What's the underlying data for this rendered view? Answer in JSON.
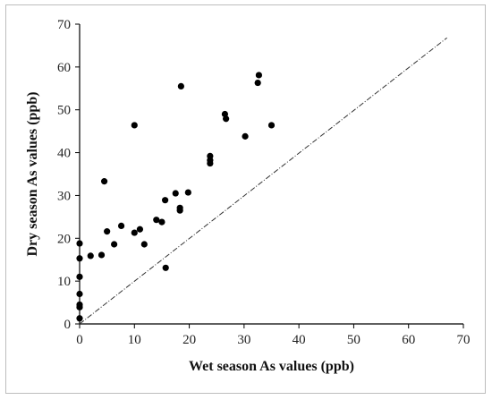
{
  "chart_data": {
    "type": "scatter",
    "title": "",
    "xlabel": "Wet season As values (ppb)",
    "ylabel": "Dry season As values (ppb)",
    "xlim": [
      0,
      70
    ],
    "ylim": [
      0,
      70
    ],
    "xticks": [
      "0",
      "10",
      "20",
      "30",
      "40",
      "50",
      "60",
      "70"
    ],
    "yticks": [
      "0",
      "10",
      "20",
      "30",
      "40",
      "50",
      "60",
      "70"
    ],
    "grid": false,
    "legend": "none",
    "reference_line": {
      "style": "dash-dot",
      "from": [
        0,
        0
      ],
      "to": [
        67,
        66.8
      ]
    },
    "marker_color": "#000000",
    "points": [
      {
        "x": 0,
        "y": 1.3
      },
      {
        "x": 0,
        "y": 3.9
      },
      {
        "x": 0,
        "y": 4.5
      },
      {
        "x": 0,
        "y": 7
      },
      {
        "x": 0,
        "y": 11
      },
      {
        "x": 0,
        "y": 15.3
      },
      {
        "x": 0,
        "y": 18.8
      },
      {
        "x": 2,
        "y": 15.9
      },
      {
        "x": 4,
        "y": 16.1
      },
      {
        "x": 4.5,
        "y": 33.3
      },
      {
        "x": 5,
        "y": 21.6
      },
      {
        "x": 6.3,
        "y": 18.6
      },
      {
        "x": 7.6,
        "y": 22.9
      },
      {
        "x": 10,
        "y": 46.4
      },
      {
        "x": 10,
        "y": 21.3
      },
      {
        "x": 11,
        "y": 22.1
      },
      {
        "x": 11.8,
        "y": 18.6
      },
      {
        "x": 14,
        "y": 24.3
      },
      {
        "x": 15,
        "y": 23.8
      },
      {
        "x": 15.6,
        "y": 28.9
      },
      {
        "x": 15.7,
        "y": 13.1
      },
      {
        "x": 17.5,
        "y": 30.5
      },
      {
        "x": 18.3,
        "y": 26.5
      },
      {
        "x": 18.3,
        "y": 27.1
      },
      {
        "x": 18.5,
        "y": 55.5
      },
      {
        "x": 19.8,
        "y": 30.7
      },
      {
        "x": 23.8,
        "y": 37.5
      },
      {
        "x": 23.8,
        "y": 38.2
      },
      {
        "x": 23.8,
        "y": 39.2
      },
      {
        "x": 26.5,
        "y": 49
      },
      {
        "x": 26.7,
        "y": 47.9
      },
      {
        "x": 30.2,
        "y": 43.8
      },
      {
        "x": 32.5,
        "y": 56.3
      },
      {
        "x": 32.7,
        "y": 58.1
      },
      {
        "x": 35,
        "y": 46.4
      }
    ]
  }
}
